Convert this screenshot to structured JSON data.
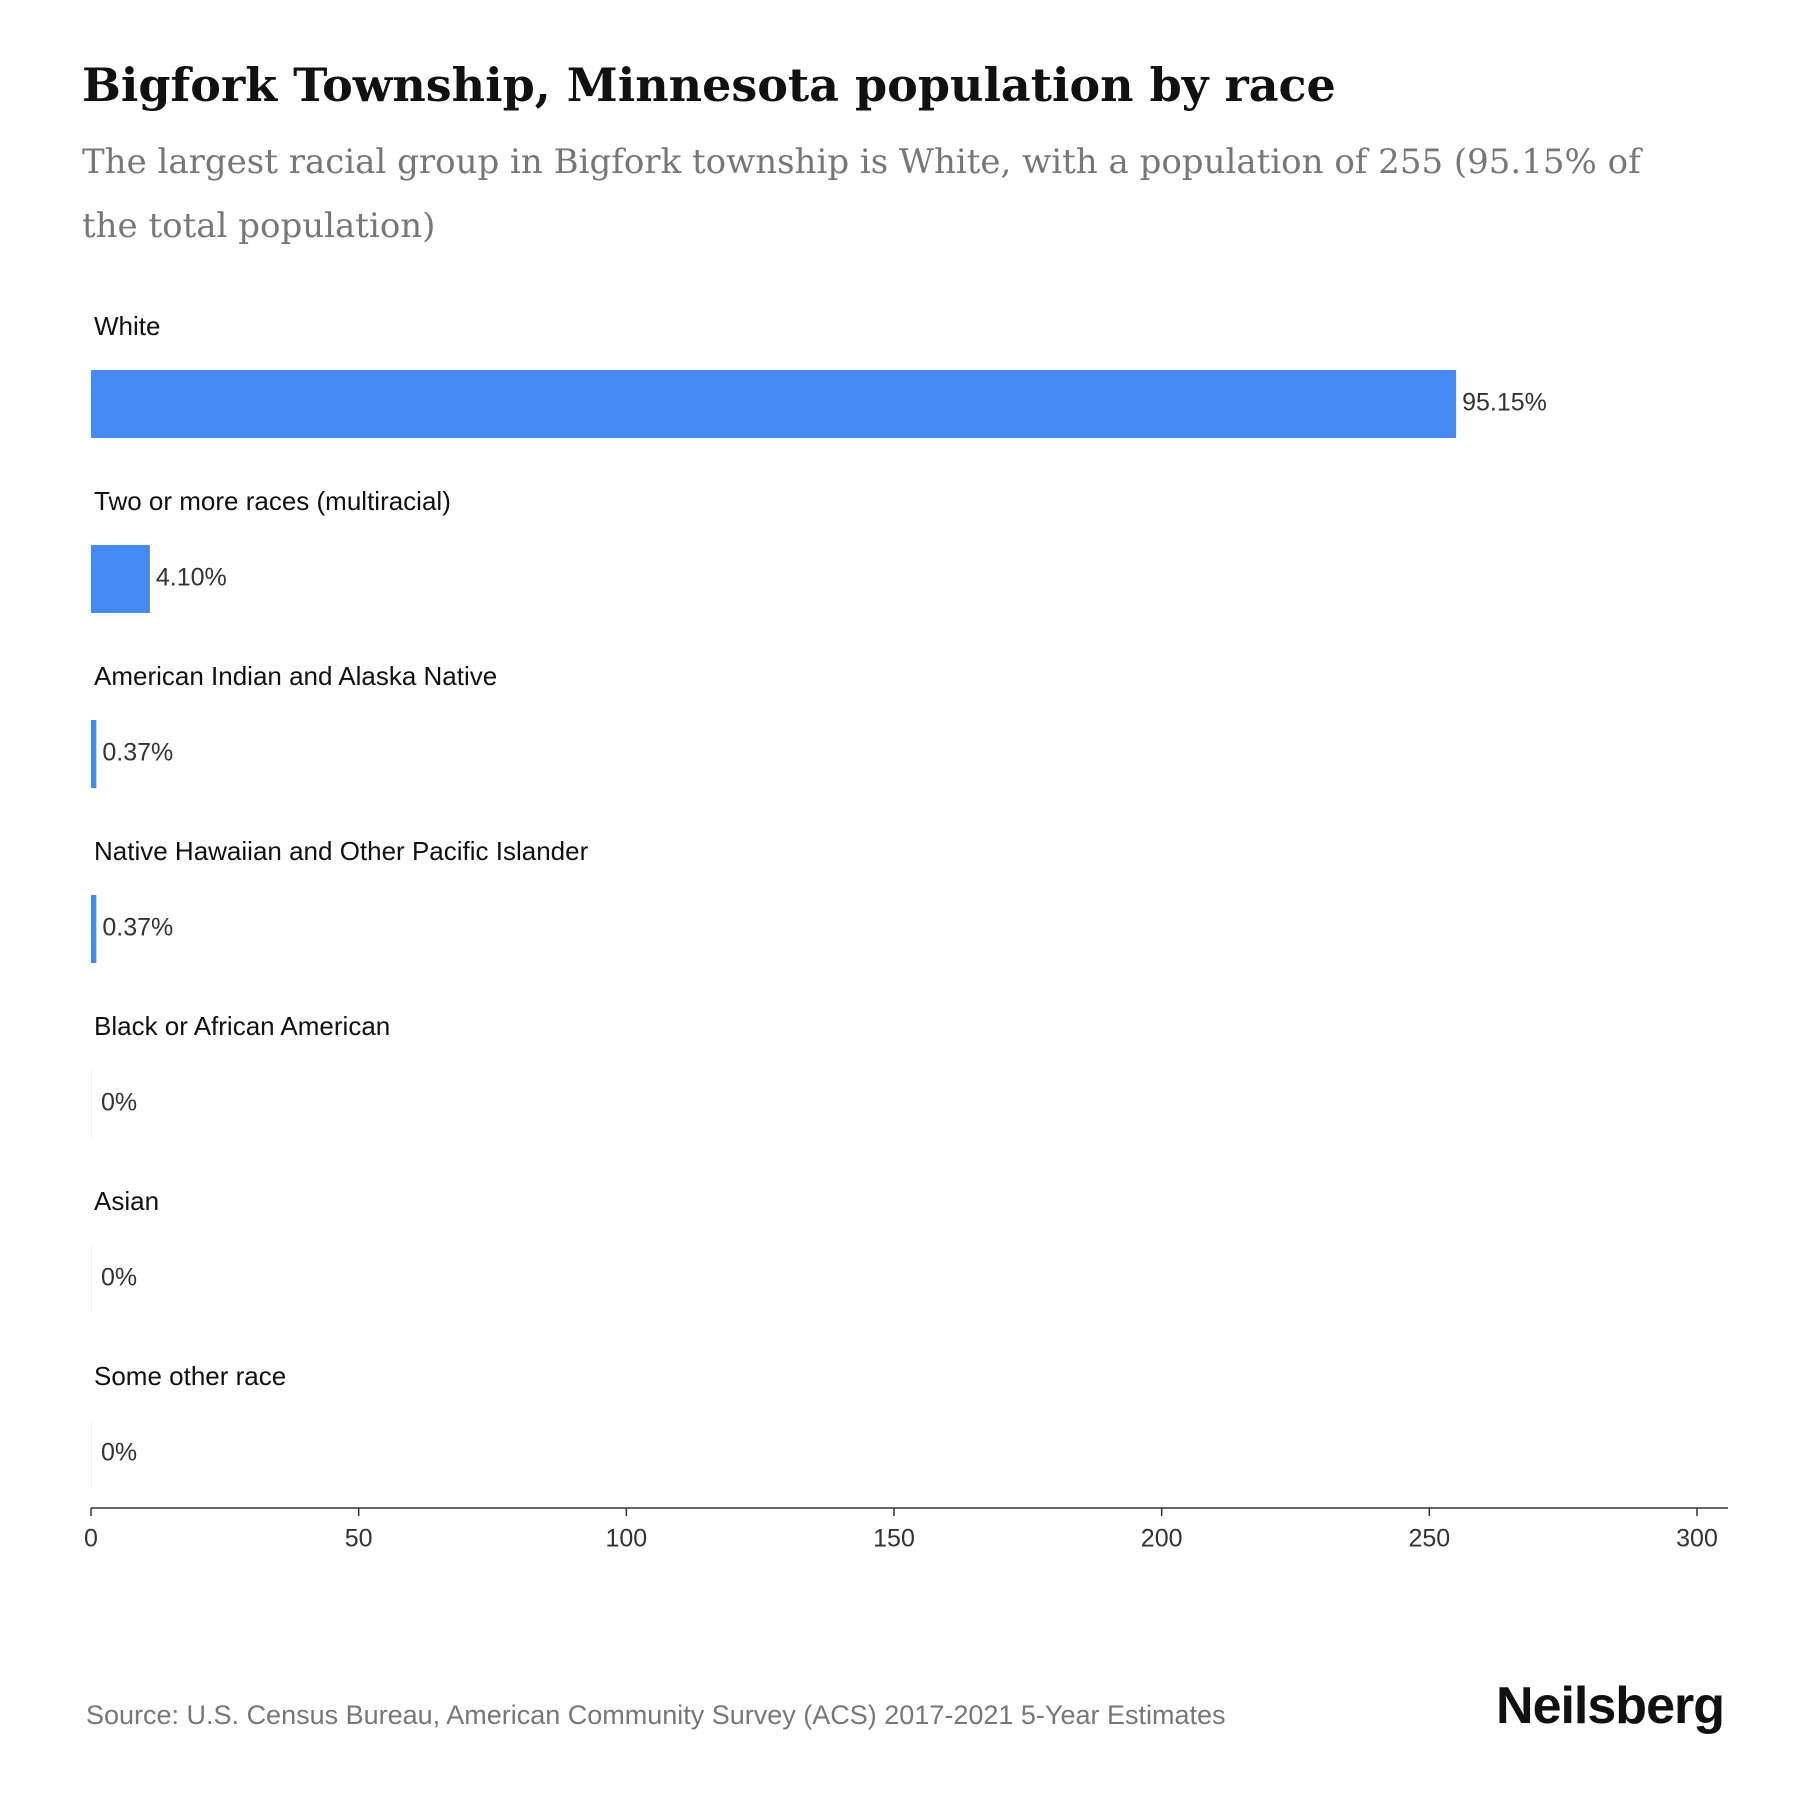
{
  "title": "Bigfork Township, Minnesota population by race",
  "subtitle": "The largest racial group in Bigfork township is White, with a population of 255 (95.15% of the total population)",
  "source": "Source: U.S. Census Bureau, American Community Survey (ACS) 2017-2021 5-Year Estimates",
  "brand": "Neilsberg",
  "colors": {
    "bar": "#4589f2",
    "axis": "#333333",
    "label": "#111111"
  },
  "chart_data": {
    "type": "bar",
    "orientation": "horizontal",
    "categories": [
      "White",
      "Two or more races (multiracial)",
      "American Indian and Alaska Native",
      "Native Hawaiian and Other Pacific Islander",
      "Black or African American",
      "Asian",
      "Some other race"
    ],
    "values": [
      255,
      11,
      1,
      1,
      0,
      0,
      0
    ],
    "data_labels": [
      "95.15%",
      "4.10%",
      "0.37%",
      "0.37%",
      "0%",
      "0%",
      "0%"
    ],
    "xlim": [
      0,
      300
    ],
    "xticks": [
      0,
      50,
      100,
      150,
      200,
      250,
      300
    ],
    "grid": false,
    "legend": "none"
  }
}
